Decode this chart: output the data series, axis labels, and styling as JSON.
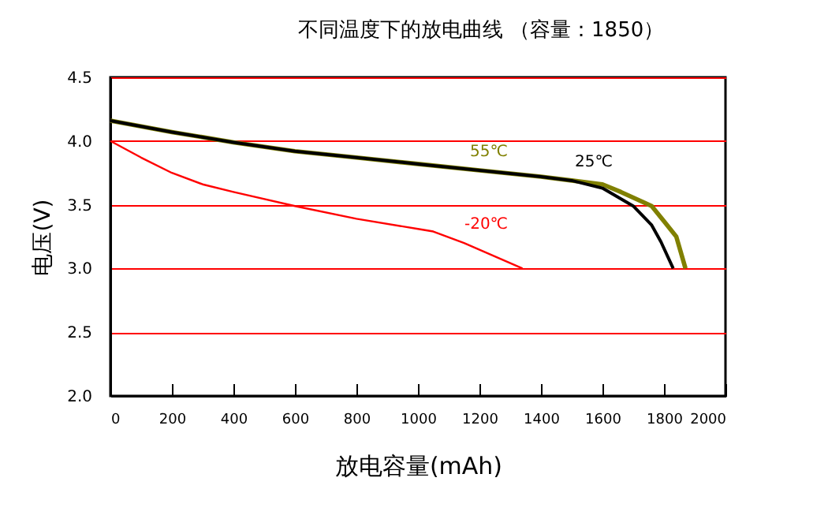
{
  "chart_data": {
    "type": "line",
    "title": "不同温度下的放电曲线 （容量：1850）",
    "xlabel": "放电容量(mAh)",
    "ylabel": "电压(V)",
    "xlim": [
      0,
      2000
    ],
    "xticks": [
      0,
      200,
      400,
      600,
      800,
      1000,
      1200,
      1400,
      1600,
      1800,
      2000
    ],
    "ylim": [
      2,
      4.5
    ],
    "yticks": [
      {
        "value": 2,
        "label": "2.0"
      },
      {
        "value": 2.5,
        "label": "2.5"
      },
      {
        "value": 3,
        "label": "3.0"
      },
      {
        "value": 3.5,
        "label": "3.5"
      },
      {
        "value": 4,
        "label": "4.0"
      },
      {
        "value": 4.5,
        "label": "4.5"
      }
    ],
    "grid": "y",
    "legend": false,
    "series": [
      {
        "name": "55℃",
        "color": "#808000",
        "x": [
          0,
          200,
          400,
          600,
          800,
          1000,
          1200,
          1400,
          1500,
          1600,
          1660,
          1760,
          1800,
          1840,
          1870
        ],
        "values": [
          4.16,
          4.07,
          3.99,
          3.92,
          3.87,
          3.82,
          3.77,
          3.72,
          3.69,
          3.66,
          3.6,
          3.49,
          3.37,
          3.25,
          3.0
        ]
      },
      {
        "name": "25℃",
        "color": "#000000",
        "x": [
          0,
          200,
          400,
          600,
          800,
          1000,
          1200,
          1400,
          1500,
          1600,
          1700,
          1760,
          1790,
          1830
        ],
        "values": [
          4.16,
          4.07,
          3.99,
          3.92,
          3.87,
          3.82,
          3.77,
          3.72,
          3.69,
          3.63,
          3.49,
          3.34,
          3.21,
          3.0
        ]
      },
      {
        "name": "-20℃",
        "color": "#ff0000",
        "x": [
          0,
          100,
          200,
          300,
          400,
          600,
          800,
          1000,
          1050,
          1150,
          1340
        ],
        "values": [
          4.0,
          3.87,
          3.75,
          3.66,
          3.6,
          3.49,
          3.39,
          3.31,
          3.29,
          3.2,
          3.0
        ]
      }
    ]
  }
}
